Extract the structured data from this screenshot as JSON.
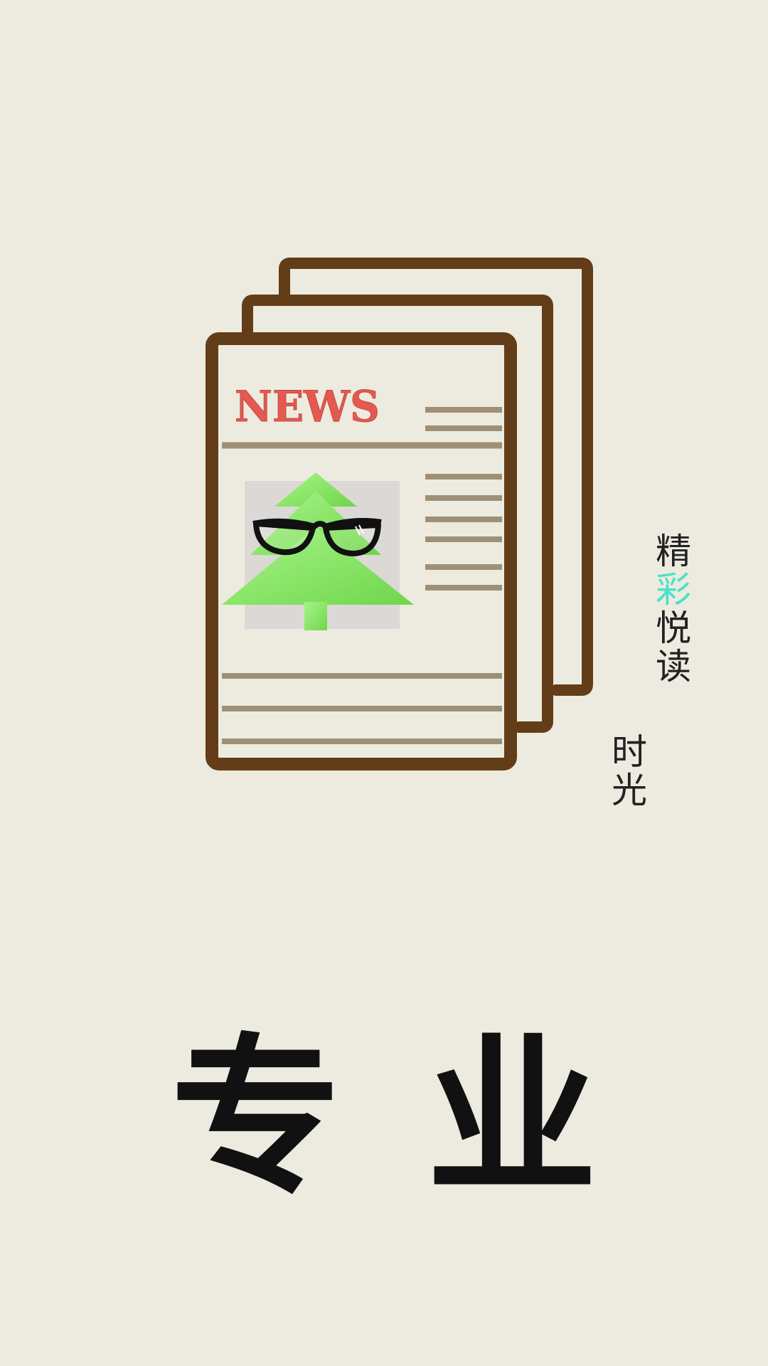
{
  "newspaper": {
    "headline": "NEWS",
    "headline_color": "#e25a50",
    "frame_color": "#633d18",
    "line_color": "#a08f78",
    "tree_color": "#8ce86a",
    "photo_bg": "#dcd8d6"
  },
  "slogan": {
    "column_right": [
      "精",
      "彩",
      "悦",
      "读"
    ],
    "column_left": [
      "时",
      "光"
    ],
    "accent_color": "#49e0c8"
  },
  "title": {
    "chars": [
      "专",
      "业"
    ]
  }
}
